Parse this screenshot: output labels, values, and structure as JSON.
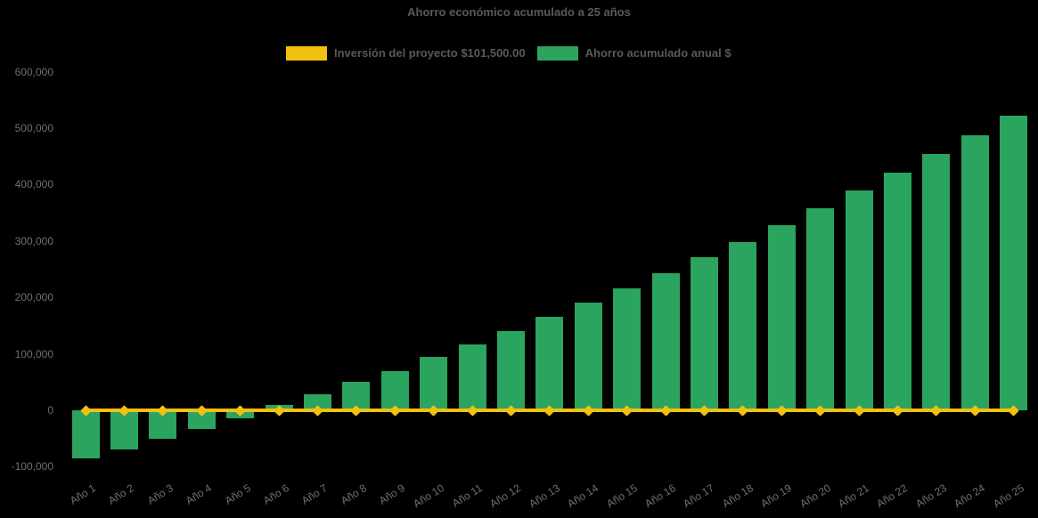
{
  "chart_data": {
    "type": "bar",
    "title": "Ahorro económico acumulado a 25 años",
    "background": "#000000",
    "title_color": "#595959",
    "axis_text_color": "#6F6F6F",
    "grid": false,
    "legend_position": "top",
    "x_label_rotation": -32,
    "ylim": [
      -100000,
      600000
    ],
    "y_tick_step": 100000,
    "categories": [
      "Año 1",
      "Año 2",
      "Año 3",
      "Año 4",
      "Año 5",
      "Año 6",
      "Año 7",
      "Año 8",
      "Año 9",
      "Año 10",
      "Año 11",
      "Año 12",
      "Año 13",
      "Año 14",
      "Año 15",
      "Año 16",
      "Año 17",
      "Año 18",
      "Año 19",
      "Año 20",
      "Año 21",
      "Año 22",
      "Año 23",
      "Año 24",
      "Año 25"
    ],
    "y_ticks": [
      {
        "value": -100000,
        "label": "-100,000"
      },
      {
        "value": 0,
        "label": "0"
      },
      {
        "value": 100000,
        "label": "100,000"
      },
      {
        "value": 200000,
        "label": "200,000"
      },
      {
        "value": 300000,
        "label": "300,000"
      },
      {
        "value": 400000,
        "label": "400,000"
      },
      {
        "value": 500000,
        "label": "500,000"
      },
      {
        "value": 600000,
        "label": "600,000"
      }
    ],
    "series": [
      {
        "name": "Inversión del proyecto $101,500.00",
        "type": "line",
        "marker": "diamond",
        "color": "#F2C011",
        "values": [
          0,
          0,
          0,
          0,
          0,
          0,
          0,
          0,
          0,
          0,
          0,
          0,
          0,
          0,
          0,
          0,
          0,
          0,
          0,
          0,
          0,
          0,
          0,
          0,
          0
        ]
      },
      {
        "name": "Ahorro acumulado anual $",
        "type": "bar",
        "color": "#2BA45F",
        "values": [
          -85000,
          -69000,
          -50000,
          -33000,
          -14000,
          9000,
          29000,
          51000,
          70000,
          95000,
          116000,
          140000,
          166000,
          191000,
          216000,
          243000,
          271000,
          298000,
          328000,
          358000,
          390000,
          421000,
          455000,
          488000,
          522000
        ]
      }
    ]
  }
}
